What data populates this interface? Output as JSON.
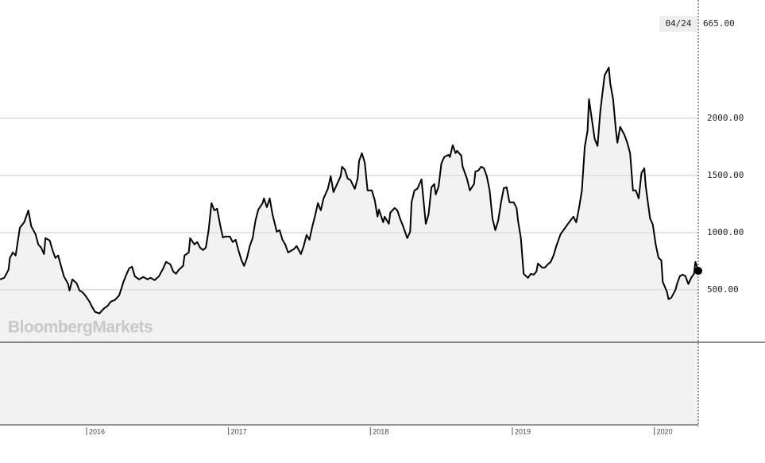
{
  "chart_data": {
    "type": "line",
    "watermark": "BloombergMarkets",
    "cursor_date": "04/24",
    "cursor_value_label": "665.00",
    "x": [
      2015.39,
      2015.42,
      2015.45,
      2015.46,
      2015.48,
      2015.5,
      2015.53,
      2015.56,
      2015.59,
      2015.61,
      2015.64,
      2015.66,
      2015.68,
      2015.7,
      2015.71,
      2015.74,
      2015.76,
      2015.78,
      2015.8,
      2015.82,
      2015.84,
      2015.87,
      2015.88,
      2015.9,
      2015.93,
      2015.95,
      2015.97,
      2015.99,
      2016.02,
      2016.04,
      2016.06,
      2016.09,
      2016.12,
      2016.15,
      2016.17,
      2016.2,
      2016.23,
      2016.26,
      2016.29,
      2016.3,
      2016.32,
      2016.34,
      2016.37,
      2016.4,
      2016.43,
      2016.45,
      2016.48,
      2016.51,
      2016.54,
      2016.56,
      2016.59,
      2016.61,
      2016.63,
      2016.65,
      2016.68,
      2016.69,
      2016.72,
      2016.73,
      2016.76,
      2016.78,
      2016.8,
      2016.82,
      2016.84,
      2016.86,
      2016.88,
      2016.9,
      2016.92,
      2016.94,
      2016.96,
      2016.98,
      2017.01,
      2017.03,
      2017.05,
      2017.07,
      2017.09,
      2017.11,
      2017.13,
      2017.15,
      2017.17,
      2017.19,
      2017.21,
      2017.24,
      2017.25,
      2017.27,
      2017.29,
      2017.31,
      2017.34,
      2017.36,
      2017.38,
      2017.4,
      2017.42,
      2017.44,
      2017.46,
      2017.48,
      2017.51,
      2017.53,
      2017.55,
      2017.57,
      2017.59,
      2017.61,
      2017.63,
      2017.65,
      2017.67,
      2017.7,
      2017.72,
      2017.74,
      2017.76,
      2017.79,
      2017.8,
      2017.82,
      2017.84,
      2017.86,
      2017.89,
      2017.91,
      2017.92,
      2017.94,
      2017.96,
      2017.98,
      2018.01,
      2018.03,
      2018.05,
      2018.06,
      2018.09,
      2018.1,
      2018.13,
      2018.14,
      2018.17,
      2018.19,
      2018.21,
      2018.23,
      2018.26,
      2018.28,
      2018.29,
      2018.31,
      2018.33,
      2018.36,
      2018.37,
      2018.39,
      2018.41,
      2018.43,
      2018.45,
      2018.46,
      2018.48,
      2018.5,
      2018.52,
      2018.55,
      2018.56,
      2018.58,
      2018.6,
      2018.61,
      2018.64,
      2018.65,
      2018.68,
      2018.7,
      2018.73,
      2018.74,
      2018.76,
      2018.78,
      2018.8,
      2018.82,
      2018.84,
      2018.86,
      2018.88,
      2018.9,
      2018.92,
      2018.94,
      2018.96,
      2018.98,
      2019.01,
      2019.03,
      2019.04,
      2019.06,
      2019.08,
      2019.11,
      2019.13,
      2019.15,
      2019.17,
      2019.18,
      2019.21,
      2019.23,
      2019.25,
      2019.27,
      2019.29,
      2019.31,
      2019.34,
      2019.36,
      2019.38,
      2019.4,
      2019.43,
      2019.45,
      2019.47,
      2019.49,
      2019.51,
      2019.53,
      2019.54,
      2019.56,
      2019.58,
      2019.6,
      2019.62,
      2019.63,
      2019.65,
      2019.68,
      2019.69,
      2019.71,
      2019.73,
      2019.74,
      2019.76,
      2019.79,
      2019.81,
      2019.83,
      2019.85,
      2019.87,
      2019.89,
      2019.91,
      2019.93,
      2019.94,
      2019.97,
      2019.99,
      2020.01,
      2020.03,
      2020.05,
      2020.06,
      2020.09,
      2020.1,
      2020.12,
      2020.15,
      2020.16,
      2020.18,
      2020.2,
      2020.22,
      2020.24,
      2020.26,
      2020.28,
      2020.29,
      2020.31
    ],
    "series": [
      {
        "color": "#000000",
        "values": [
          590,
          604,
          674,
          778,
          826,
          799,
          1042,
          1090,
          1194,
          1056,
          986,
          896,
          868,
          812,
          951,
          931,
          847,
          778,
          799,
          708,
          618,
          549,
          493,
          590,
          556,
          493,
          479,
          451,
          396,
          347,
          306,
          292,
          333,
          361,
          396,
          410,
          451,
          569,
          660,
          687,
          701,
          618,
          590,
          611,
          590,
          604,
          583,
          618,
          687,
          743,
          722,
          660,
          639,
          674,
          708,
          799,
          826,
          951,
          896,
          917,
          868,
          847,
          868,
          1021,
          1257,
          1194,
          1208,
          1076,
          958,
          965,
          965,
          917,
          937,
          847,
          764,
          708,
          778,
          882,
          951,
          1104,
          1201,
          1257,
          1299,
          1222,
          1299,
          1160,
          1007,
          1021,
          937,
          896,
          826,
          840,
          854,
          882,
          812,
          882,
          979,
          937,
          1049,
          1146,
          1257,
          1194,
          1299,
          1382,
          1493,
          1354,
          1410,
          1493,
          1576,
          1549,
          1472,
          1458,
          1382,
          1472,
          1625,
          1694,
          1611,
          1368,
          1368,
          1285,
          1139,
          1201,
          1090,
          1139,
          1076,
          1174,
          1215,
          1194,
          1118,
          1056,
          951,
          1007,
          1264,
          1368,
          1382,
          1465,
          1333,
          1076,
          1160,
          1396,
          1424,
          1333,
          1403,
          1604,
          1660,
          1680,
          1660,
          1764,
          1694,
          1715,
          1674,
          1576,
          1472,
          1368,
          1424,
          1535,
          1542,
          1576,
          1562,
          1493,
          1368,
          1125,
          1021,
          1104,
          1264,
          1389,
          1396,
          1264,
          1264,
          1215,
          1104,
          951,
          639,
          604,
          639,
          632,
          660,
          729,
          694,
          694,
          722,
          743,
          799,
          882,
          986,
          1021,
          1056,
          1090,
          1139,
          1090,
          1215,
          1368,
          1750,
          1889,
          2167,
          1993,
          1819,
          1757,
          2062,
          2167,
          2375,
          2444,
          2305,
          2167,
          1889,
          1785,
          1924,
          1854,
          1785,
          1694,
          1368,
          1368,
          1299,
          1521,
          1562,
          1403,
          1125,
          1069,
          896,
          778,
          757,
          569,
          479,
          417,
          431,
          500,
          549,
          618,
          632,
          618,
          549,
          604,
          639,
          743,
          665
        ]
      }
    ],
    "xlim": [
      2015.39,
      2020.31
    ],
    "xticks": [
      2016,
      2017,
      2018,
      2019,
      2020
    ],
    "ylim": [
      40,
      2930
    ],
    "yticks": [
      {
        "value": 500,
        "label": "500.00"
      },
      {
        "value": 1000,
        "label": "1000.00"
      },
      {
        "value": 1500,
        "label": "1500.00"
      },
      {
        "value": 2000,
        "label": "2000.00"
      }
    ],
    "grid": true,
    "area_fill": "#f2f2f2"
  }
}
